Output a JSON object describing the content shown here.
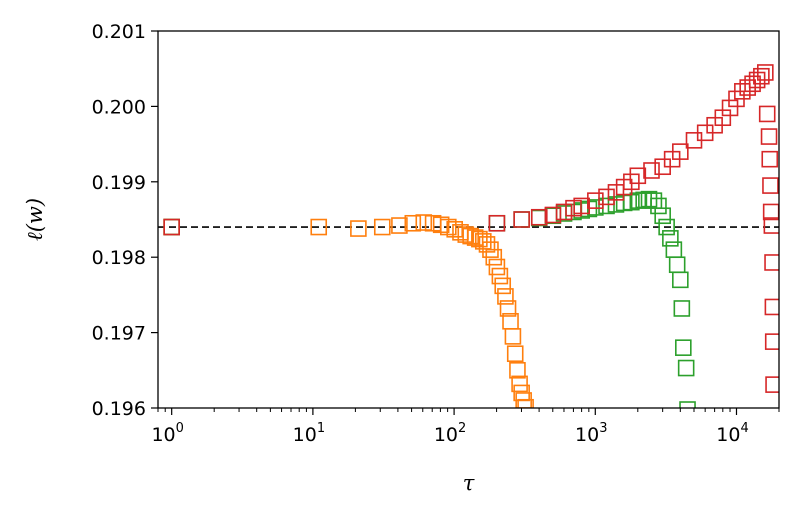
{
  "chart_data": {
    "type": "scatter",
    "xlabel": "τ",
    "ylabel": "ℓ(w)",
    "xscale": "log",
    "xlim": [
      0.8,
      20000
    ],
    "ylim": [
      0.196,
      0.201
    ],
    "grid": false,
    "legend": "none",
    "x_ticks": [
      {
        "value": 1,
        "base": "10",
        "exp": "0"
      },
      {
        "value": 10,
        "base": "10",
        "exp": "1"
      },
      {
        "value": 100,
        "base": "10",
        "exp": "2"
      },
      {
        "value": 1000,
        "base": "10",
        "exp": "3"
      },
      {
        "value": 10000,
        "base": "10",
        "exp": "4"
      }
    ],
    "y_ticks": [
      0.196,
      0.197,
      0.198,
      0.199,
      0.2,
      0.201
    ],
    "y_tick_labels": [
      "0.196",
      "0.197",
      "0.198",
      "0.199",
      "0.200",
      "0.201"
    ],
    "reference_line": {
      "y": 0.1984,
      "style": "dashed",
      "color": "#000000"
    },
    "series": [
      {
        "color": "#ff7f0e",
        "marker": "open-square",
        "points": [
          [
            1,
            0.1984
          ],
          [
            11,
            0.1984
          ],
          [
            21,
            0.19838
          ],
          [
            31,
            0.1984
          ],
          [
            41,
            0.19842
          ],
          [
            51,
            0.19845
          ],
          [
            61,
            0.19846
          ],
          [
            71,
            0.19845
          ],
          [
            81,
            0.19843
          ],
          [
            91,
            0.1984
          ],
          [
            101,
            0.19837
          ],
          [
            111,
            0.19833
          ],
          [
            121,
            0.1983
          ],
          [
            131,
            0.19828
          ],
          [
            141,
            0.19826
          ],
          [
            151,
            0.19824
          ],
          [
            161,
            0.19821
          ],
          [
            171,
            0.19817
          ],
          [
            181,
            0.1981
          ],
          [
            191,
            0.198
          ],
          [
            201,
            0.19787
          ],
          [
            211,
            0.19775
          ],
          [
            221,
            0.19762
          ],
          [
            231,
            0.19748
          ],
          [
            241,
            0.19732
          ],
          [
            251,
            0.19715
          ],
          [
            261,
            0.19695
          ],
          [
            271,
            0.19672
          ],
          [
            281,
            0.1965
          ],
          [
            291,
            0.19632
          ],
          [
            301,
            0.1962
          ],
          [
            311,
            0.1961
          ],
          [
            321,
            0.19601
          ]
        ]
      },
      {
        "color": "#2ca02c",
        "marker": "open-square",
        "points": [
          [
            1,
            0.1984
          ],
          [
            201,
            0.19845
          ],
          [
            301,
            0.1985
          ],
          [
            401,
            0.19852
          ],
          [
            501,
            0.19855
          ],
          [
            601,
            0.19858
          ],
          [
            701,
            0.1986
          ],
          [
            801,
            0.19862
          ],
          [
            901,
            0.19864
          ],
          [
            1001,
            0.19866
          ],
          [
            1201,
            0.19868
          ],
          [
            1401,
            0.1987
          ],
          [
            1601,
            0.19872
          ],
          [
            1801,
            0.19873
          ],
          [
            2001,
            0.19875
          ],
          [
            2201,
            0.19876
          ],
          [
            2401,
            0.19877
          ],
          [
            2601,
            0.19875
          ],
          [
            2801,
            0.19868
          ],
          [
            3001,
            0.19855
          ],
          [
            3201,
            0.1984
          ],
          [
            3401,
            0.19825
          ],
          [
            3601,
            0.1981
          ],
          [
            3801,
            0.1979
          ],
          [
            4001,
            0.1977
          ],
          [
            4101,
            0.19732
          ],
          [
            4201,
            0.1968
          ],
          [
            4401,
            0.19653
          ],
          [
            4501,
            0.19598
          ]
        ]
      },
      {
        "color": "#d62728",
        "marker": "open-square",
        "points": [
          [
            1,
            0.1984
          ],
          [
            201,
            0.19845
          ],
          [
            301,
            0.1985
          ],
          [
            401,
            0.19853
          ],
          [
            501,
            0.19856
          ],
          [
            601,
            0.1986
          ],
          [
            701,
            0.19865
          ],
          [
            801,
            0.19868
          ],
          [
            1001,
            0.19875
          ],
          [
            1201,
            0.1988
          ],
          [
            1401,
            0.19886
          ],
          [
            1601,
            0.19893
          ],
          [
            1801,
            0.199
          ],
          [
            2001,
            0.19908
          ],
          [
            2501,
            0.19915
          ],
          [
            3001,
            0.1992
          ],
          [
            3501,
            0.1993
          ],
          [
            4001,
            0.1994
          ],
          [
            5001,
            0.19955
          ],
          [
            6001,
            0.19965
          ],
          [
            7001,
            0.19975
          ],
          [
            8001,
            0.19985
          ],
          [
            9001,
            0.19998
          ],
          [
            10001,
            0.2001
          ],
          [
            11001,
            0.2002
          ],
          [
            12001,
            0.20025
          ],
          [
            13001,
            0.2003
          ],
          [
            14001,
            0.20035
          ],
          [
            15001,
            0.2004
          ],
          [
            16001,
            0.20045
          ],
          [
            16501,
            0.1999
          ],
          [
            17001,
            0.1996
          ],
          [
            17201,
            0.1993
          ],
          [
            17401,
            0.19895
          ],
          [
            17601,
            0.1986
          ],
          [
            17801,
            0.19842
          ],
          [
            18001,
            0.19793
          ],
          [
            18101,
            0.19734
          ],
          [
            18201,
            0.19688
          ],
          [
            18301,
            0.19631
          ]
        ]
      }
    ]
  }
}
